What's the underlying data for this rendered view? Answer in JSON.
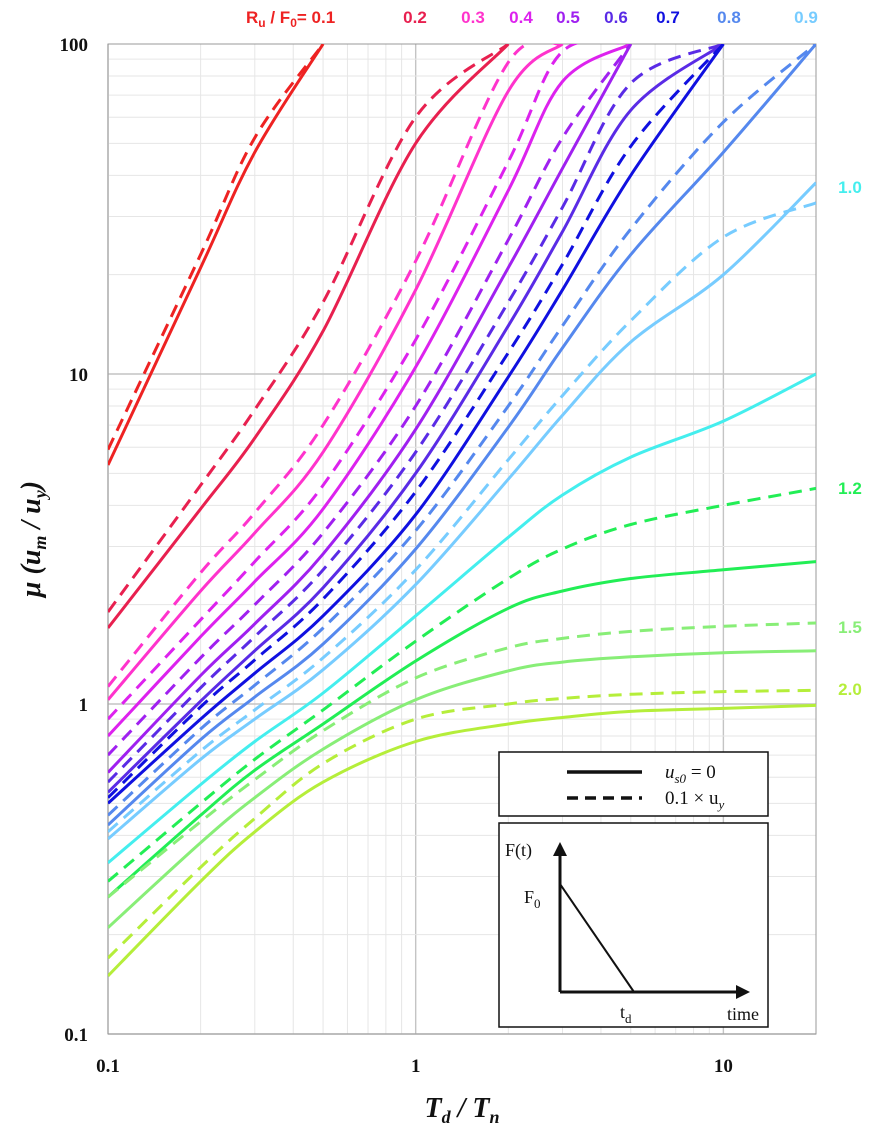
{
  "chart_data": {
    "type": "line",
    "title": "",
    "xlabel": "Td / Tn",
    "ylabel": "μ (um / uy)",
    "xscale": "log",
    "yscale": "log",
    "xlim": [
      0.1,
      20
    ],
    "ylim": [
      0.1,
      100
    ],
    "x_ticks": [
      {
        "value": 0.1,
        "label": "0.1"
      },
      {
        "value": 1,
        "label": "1"
      },
      {
        "value": 10,
        "label": "10"
      }
    ],
    "y_ticks": [
      {
        "value": 0.1,
        "label": "0.1"
      },
      {
        "value": 1,
        "label": "1"
      },
      {
        "value": 10,
        "label": "10"
      },
      {
        "value": 100,
        "label": "100"
      }
    ],
    "grid": true,
    "x": [
      0.1,
      0.2,
      0.3,
      0.5,
      1,
      2,
      3,
      5,
      10,
      20
    ],
    "series_header": "R",
    "series_header_sub": "u",
    "series_header_mid": " / F",
    "series_header_sub2": "0",
    "series_header_end": "= 0.1",
    "series": [
      {
        "ratio": "0.1",
        "color": "#ee2222",
        "label": "0.1",
        "solid": [
          5.3,
          21,
          47,
          100,
          null,
          null,
          null,
          null,
          null,
          null
        ],
        "dashed": [
          5.9,
          23,
          52,
          100,
          null,
          null,
          null,
          null,
          null,
          null
        ]
      },
      {
        "ratio": "0.2",
        "color": "#e8204f",
        "label": "0.2",
        "solid": [
          1.7,
          3.9,
          6.4,
          13.5,
          50,
          100,
          null,
          null,
          null,
          null
        ],
        "dashed": [
          1.9,
          4.6,
          7.8,
          16.5,
          60,
          100,
          null,
          null,
          null,
          null
        ]
      },
      {
        "ratio": "0.3",
        "color": "#ff33cc",
        "label": "0.3",
        "solid": [
          1.03,
          2.2,
          3.3,
          5.8,
          18,
          72,
          100,
          null,
          null,
          null
        ],
        "dashed": [
          1.13,
          2.5,
          3.8,
          7,
          22,
          88,
          100,
          null,
          null,
          null
        ]
      },
      {
        "ratio": "0.4",
        "color": "#dd22ee",
        "label": "0.4",
        "solid": [
          0.8,
          1.6,
          2.35,
          3.9,
          10.5,
          36,
          77,
          100,
          null,
          null
        ],
        "dashed": [
          0.9,
          1.8,
          2.7,
          4.6,
          12.7,
          44,
          95,
          100,
          null,
          null
        ]
      },
      {
        "ratio": "0.5",
        "color": "#a020f0",
        "label": "0.5",
        "solid": [
          0.62,
          1.22,
          1.75,
          2.85,
          6.8,
          21,
          42,
          100,
          null,
          null
        ],
        "dashed": [
          0.7,
          1.38,
          2,
          3.3,
          8,
          25.5,
          52,
          100,
          null,
          null
        ]
      },
      {
        "ratio": "0.6",
        "color": "#5a2be6",
        "label": "0.6",
        "solid": [
          0.54,
          1.02,
          1.45,
          2.25,
          5,
          14,
          27,
          63,
          100,
          null
        ],
        "dashed": [
          0.58,
          1.12,
          1.6,
          2.55,
          5.8,
          16.5,
          32,
          76,
          100,
          null
        ]
      },
      {
        "ratio": "0.7",
        "color": "#1010e0",
        "label": "0.7",
        "solid": [
          0.5,
          0.9,
          1.24,
          1.85,
          3.75,
          9.8,
          18,
          40,
          100,
          null
        ],
        "dashed": [
          0.52,
          0.98,
          1.36,
          2.08,
          4.4,
          11.6,
          21.5,
          49,
          100,
          null
        ]
      },
      {
        "ratio": "0.8",
        "color": "#5588ee",
        "label": "0.8",
        "solid": [
          0.43,
          0.78,
          1.05,
          1.52,
          2.95,
          6.9,
          12,
          23,
          47,
          100
        ],
        "dashed": [
          0.46,
          0.84,
          1.14,
          1.7,
          3.35,
          8,
          14,
          27.5,
          58,
          100
        ]
      },
      {
        "ratio": "0.9",
        "color": "#77ccff",
        "label": "0.9",
        "solid": [
          0.39,
          0.68,
          0.9,
          1.27,
          2.3,
          4.8,
          7.5,
          12.5,
          20,
          38
        ],
        "dashed": [
          0.41,
          0.72,
          0.96,
          1.38,
          2.55,
          5.5,
          8.6,
          14.5,
          26,
          33
        ]
      },
      {
        "ratio": "1.0",
        "color": "#44eeee",
        "label": "1.0",
        "solid": [
          0.33,
          0.57,
          0.77,
          1.08,
          1.85,
          3.2,
          4.3,
          5.6,
          7.2,
          10
        ]
      },
      {
        "ratio": "1.2",
        "color": "#22ee55",
        "label": "1.2",
        "solid": [
          0.26,
          0.46,
          0.63,
          0.87,
          1.35,
          1.95,
          2.2,
          2.4,
          2.55,
          2.7
        ],
        "dashed": [
          0.29,
          0.5,
          0.68,
          0.96,
          1.55,
          2.4,
          2.95,
          3.5,
          4,
          4.5
        ]
      },
      {
        "ratio": "1.5",
        "color": "#88ee77",
        "label": "1.5",
        "solid": [
          0.21,
          0.38,
          0.52,
          0.73,
          1.03,
          1.26,
          1.34,
          1.39,
          1.43,
          1.45
        ],
        "dashed": [
          0.26,
          0.44,
          0.59,
          0.83,
          1.2,
          1.48,
          1.58,
          1.66,
          1.72,
          1.76
        ]
      },
      {
        "ratio": "2.0",
        "color": "#b5ee3a",
        "label": "2.0",
        "solid": [
          0.15,
          0.29,
          0.41,
          0.58,
          0.77,
          0.87,
          0.91,
          0.95,
          0.97,
          0.99
        ],
        "dashed": [
          0.17,
          0.32,
          0.45,
          0.66,
          0.9,
          1,
          1.04,
          1.07,
          1.09,
          1.1
        ]
      }
    ],
    "legend": {
      "placement": "bottom-right",
      "solid_label": "u",
      "solid_label_sub": "s0",
      "solid_label_value": " = 0",
      "dashed_label": "0.1 × u",
      "dashed_label_sub": "y"
    },
    "inset": {
      "placement": "bottom-right",
      "y_label": "F(t)",
      "peak_label": "F",
      "peak_label_sub": "0",
      "duration_label": "t",
      "duration_label_sub": "d",
      "x_label": "time"
    }
  }
}
